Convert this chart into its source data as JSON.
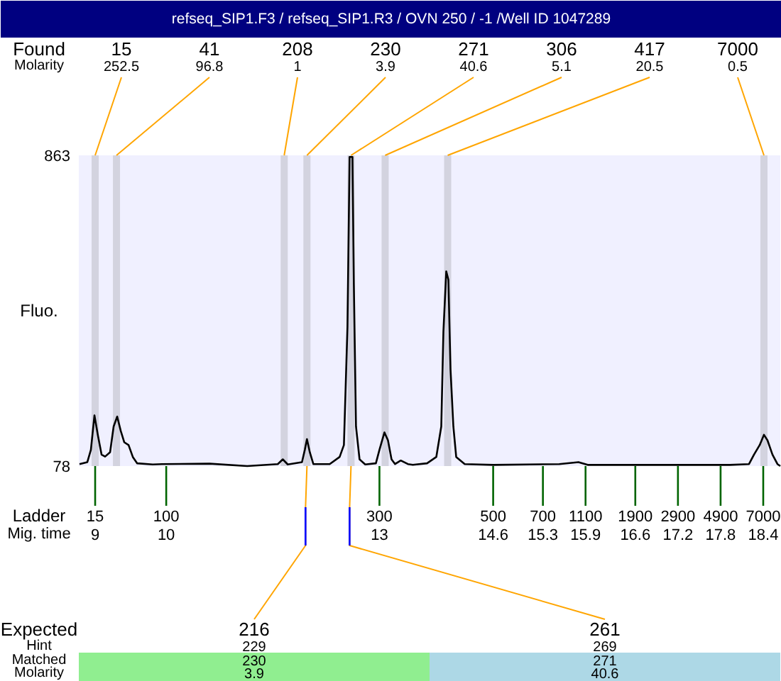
{
  "chart_data": {
    "type": "line",
    "title": "refseq_SIP1.F3 / refseq_SIP1.R3 / OVN 250 / -1 /Well ID 1047289",
    "ylabel": "Fluo.",
    "xlabel": "Mig. time",
    "x": [
      8.78,
      8.89,
      8.94,
      8.99,
      9.04,
      9.09,
      9.14,
      9.21,
      9.26,
      9.31,
      9.36,
      9.41,
      9.47,
      9.53,
      9.59,
      9.81,
      9.94,
      10.61,
      11.14,
      11.57,
      11.64,
      11.71,
      11.91,
      11.95,
      11.98,
      12.02,
      12.07,
      12.3,
      12.44,
      12.5,
      12.55,
      12.58,
      12.62,
      12.64,
      12.67,
      12.72,
      12.8,
      12.95,
      13.0,
      13.07,
      13.12,
      13.17,
      13.22,
      13.3,
      13.4,
      13.47,
      13.67,
      13.8,
      13.87,
      13.9,
      13.94,
      13.97,
      14.0,
      14.04,
      14.08,
      14.2,
      14.6,
      15.53,
      15.8,
      15.93,
      16.6,
      17.93,
      18.2,
      18.27,
      18.35,
      18.41,
      18.46,
      18.53,
      18.6,
      18.64
    ],
    "series": [
      {
        "color": "#000000",
        "values": [
          83,
          88,
          119,
          206,
          154,
          107,
          102,
          113,
          178,
          203,
          167,
          138,
          131,
          101,
          85,
          82,
          83,
          84,
          78,
          83,
          95,
          82,
          88,
          119,
          146,
          113,
          83,
          83,
          101,
          131,
          429,
          859,
          859,
          537,
          178,
          95,
          82,
          85,
          119,
          163,
          143,
          95,
          83,
          92,
          83,
          81,
          85,
          101,
          178,
          417,
          570,
          549,
          322,
          178,
          101,
          83,
          81,
          83,
          88,
          81,
          81,
          81,
          83,
          107,
          131,
          157,
          143,
          107,
          83,
          78
        ]
      }
    ],
    "xlim": [
      8.77,
      18.64
    ],
    "xticks": [
      9,
      10,
      13,
      14.6,
      15.3,
      15.9,
      16.6,
      17.2,
      17.8,
      18.4
    ],
    "ylim": [
      78,
      863
    ],
    "yticks": [
      78,
      863
    ],
    "bands": [
      {
        "axis": "x",
        "from": 8.95,
        "to": 9.05,
        "label": "15",
        "color": "#d3d3df"
      },
      {
        "axis": "x",
        "from": 9.25,
        "to": 9.35,
        "label": "41",
        "color": "#d3d3df"
      },
      {
        "axis": "x",
        "from": 11.61,
        "to": 11.71,
        "label": "208",
        "color": "#d3d3df"
      },
      {
        "axis": "x",
        "from": 11.93,
        "to": 12.03,
        "label": "230",
        "color": "#d3d3df"
      },
      {
        "axis": "x",
        "from": 12.55,
        "to": 12.65,
        "label": "271",
        "color": "#d3d3df"
      },
      {
        "axis": "x",
        "from": 13.03,
        "to": 13.13,
        "label": "306",
        "color": "#d3d3df"
      },
      {
        "axis": "x",
        "from": 13.91,
        "to": 14.01,
        "label": "417",
        "color": "#d3d3df"
      },
      {
        "axis": "x",
        "from": 18.36,
        "to": 18.46,
        "label": "7000",
        "color": "#d3d3df"
      }
    ],
    "annotations": [
      "Found",
      "Molarity",
      {
        "text": "252.5",
        "x": 9.0,
        "y": 863
      },
      {
        "text": "96.8",
        "x": 9.3,
        "y": 863
      },
      {
        "text": "1",
        "x": 11.66,
        "y": 863
      },
      {
        "text": "3.9",
        "x": 11.98,
        "y": 863
      },
      {
        "text": "40.6",
        "x": 12.6,
        "y": 863
      },
      {
        "text": "5.1",
        "x": 13.08,
        "y": 863
      },
      {
        "text": "20.5",
        "x": 13.96,
        "y": 863
      },
      {
        "text": "0.5",
        "x": 18.41,
        "y": 863
      },
      "Ladder",
      "15",
      "100",
      "300",
      "500",
      "700",
      "1100",
      "1900",
      "2900",
      "4900",
      "7000",
      "Expected",
      {
        "text": "216",
        "x": 11.98
      },
      {
        "text": "261",
        "x": 12.6
      },
      "Hint",
      "229",
      "269",
      "Matched",
      "230",
      "271",
      "Molarity",
      "3.9",
      "40.6"
    ]
  }
}
